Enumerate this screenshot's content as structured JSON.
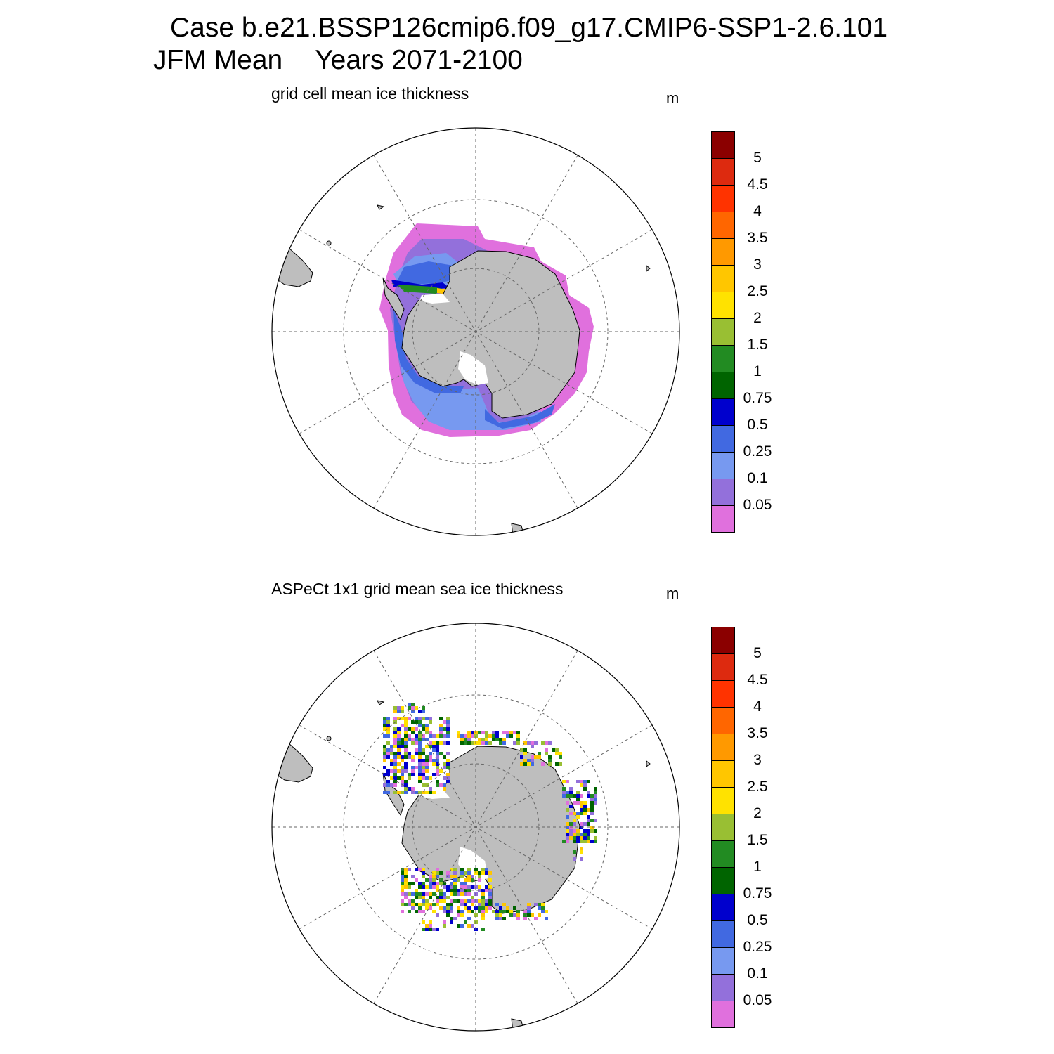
{
  "header": {
    "case_line": "Case b.e21.BSSP126cmip6.f09_g17.CMIP6-SSP1-2.6.101",
    "period_left": "JFM Mean",
    "period_right": "Years 2071-2100"
  },
  "panels": [
    {
      "title": "grid cell mean ice thickness",
      "units": "m",
      "source": "model"
    },
    {
      "title": "ASPeCt 1x1 grid mean sea ice thickness",
      "units": "m",
      "source": "observations"
    }
  ],
  "colorbar": {
    "labels": [
      "5",
      "4.5",
      "4",
      "3.5",
      "3",
      "2.5",
      "2",
      "1.5",
      "1",
      "0.75",
      "0.5",
      "0.25",
      "0.1",
      "0.05"
    ],
    "colors": [
      "#8b0000",
      "#dd2a0f",
      "#ff3300",
      "#ff6600",
      "#ff9900",
      "#ffc600",
      "#ffe200",
      "#99bf33",
      "#228b22",
      "#006400",
      "#0000cd",
      "#4169e1",
      "#7799f0",
      "#9370db",
      "#e070dd"
    ]
  },
  "colors": {
    "land": "#bebebe",
    "grid": "#666666"
  }
}
